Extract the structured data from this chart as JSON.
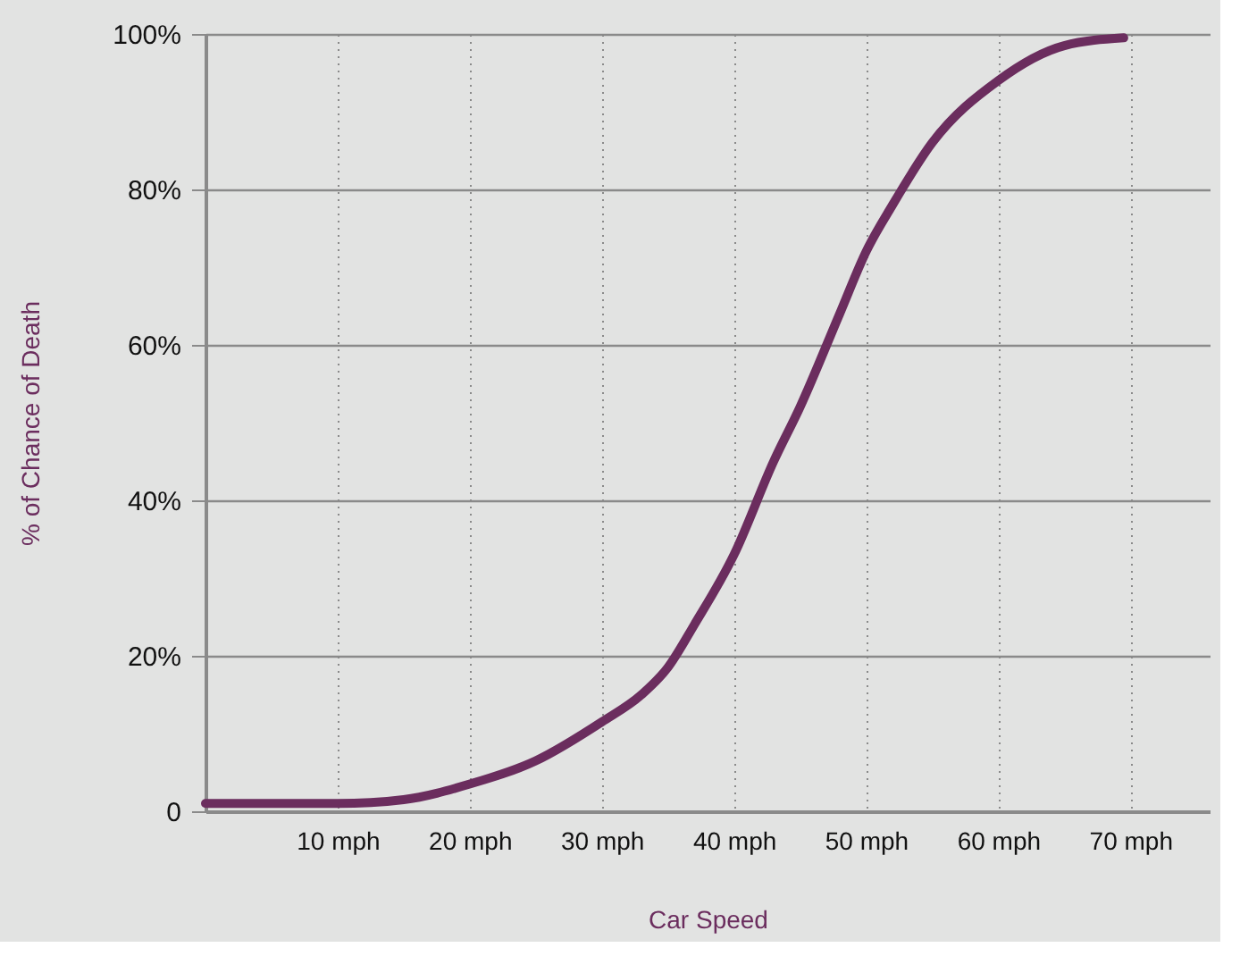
{
  "chart_data": {
    "type": "line",
    "xlabel": "Car Speed",
    "ylabel": "% of Chance of Death",
    "x": [
      0,
      10,
      15,
      20,
      25,
      30,
      33,
      35,
      37,
      40,
      43,
      45,
      48,
      50,
      52,
      55,
      60,
      65,
      69.5
    ],
    "series": [
      {
        "color": "#6b2d5e",
        "values": [
          1,
          1,
          1.5,
          3.5,
          6.5,
          11.5,
          15,
          18.5,
          24,
          33,
          45,
          52,
          64,
          72,
          78,
          86,
          94,
          98.5,
          99.5
        ]
      }
    ],
    "xlim": [
      0,
      76
    ],
    "ylim": [
      0,
      100
    ],
    "xticks": [
      {
        "value": 10,
        "label": "10 mph"
      },
      {
        "value": 20,
        "label": "20 mph"
      },
      {
        "value": 30,
        "label": "30 mph"
      },
      {
        "value": 40,
        "label": "40 mph"
      },
      {
        "value": 50,
        "label": "50 mph"
      },
      {
        "value": 60,
        "label": "60 mph"
      },
      {
        "value": 70,
        "label": "70 mph"
      }
    ],
    "yticks": [
      0,
      {
        "value": 20,
        "label": "20%"
      },
      {
        "value": 40,
        "label": "40%"
      },
      {
        "value": 60,
        "label": "60%"
      },
      {
        "value": 80,
        "label": "80%"
      },
      {
        "value": 100,
        "label": "100%"
      }
    ],
    "grid": true,
    "marker": "none",
    "line_style": "solid"
  }
}
